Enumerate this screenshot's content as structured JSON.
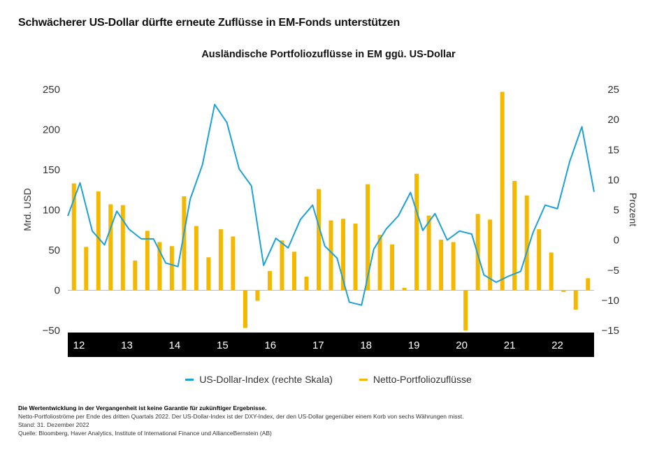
{
  "headline": "Schwächerer US-Dollar dürfte erneute Zuflüsse in EM-Fonds unterstützen",
  "notes": {
    "disclaimer": "Die Wertentwicklung in der Vergangenheit ist keine Garantie für zukünftiger Ergebnisse.",
    "line1": "Netto-Portfolioströme per Ende des dritten Quartals 2022. Der US-Dollar-Index ist der DXY-Index, der den US-Dollar gegenüber einem Korb von sechs Währungen misst.",
    "line2": "Stand: 31. Dezember 2022",
    "line3": "Quelle: Bloomberg, Haver Analytics, Institute of International Finance und AllianceBernstein (AB)"
  },
  "chart_data": {
    "type": "bar",
    "title": "Ausländische Portfoliozuflüsse in EM ggü. US-Dollar",
    "ylabel": "Mrd. USD",
    "ylabel_right": "Prozent",
    "ylim": [
      -50,
      250
    ],
    "ylim_right": [
      -15,
      25
    ],
    "yticks": [
      "−50",
      "0",
      "50",
      "100",
      "150",
      "200",
      "250"
    ],
    "yticks_right": [
      "−15",
      "−10",
      "−5",
      "0",
      "5",
      "10",
      "15",
      "20",
      "25"
    ],
    "x_band_labels": [
      "12",
      "13",
      "14",
      "15",
      "16",
      "17",
      "18",
      "19",
      "20",
      "21",
      "22"
    ],
    "colors": {
      "bars": "#f5b800",
      "line": "#1ea0d8",
      "band": "#000000",
      "band_text": "#ffffff"
    },
    "series": [
      {
        "name": "Netto-Portfoliozuflüsse",
        "axis": "left",
        "values": [
          133,
          54,
          123,
          107,
          106,
          37,
          74,
          60,
          55,
          117,
          80,
          41,
          76,
          67,
          -47,
          -13,
          24,
          62,
          48,
          17,
          126,
          87,
          89,
          83,
          132,
          69,
          57,
          3,
          145,
          93,
          63,
          60,
          -50,
          95,
          88,
          247,
          136,
          118,
          76,
          47,
          -2,
          -24,
          15
        ]
      },
      {
        "name": "US-Dollar-Index (rechte Skala)",
        "axis": "right",
        "values": [
          4,
          9.5,
          1.5,
          -0.8,
          4.8,
          1.8,
          0.2,
          0.2,
          -3.8,
          -4.4,
          6.8,
          12.5,
          22.5,
          19.5,
          11.8,
          9,
          -4.2,
          0.3,
          -1.3,
          3.4,
          5.8,
          -1,
          -3,
          -10.3,
          -10.8,
          -1.5,
          1.8,
          4,
          7.9,
          1.6,
          4.4,
          0,
          1.5,
          1,
          -5.8,
          -7,
          -6,
          -5.2,
          1.2,
          5.8,
          5.2,
          13,
          18.8,
          8
        ]
      }
    ],
    "legend_position": "bottom",
    "grid": true
  }
}
